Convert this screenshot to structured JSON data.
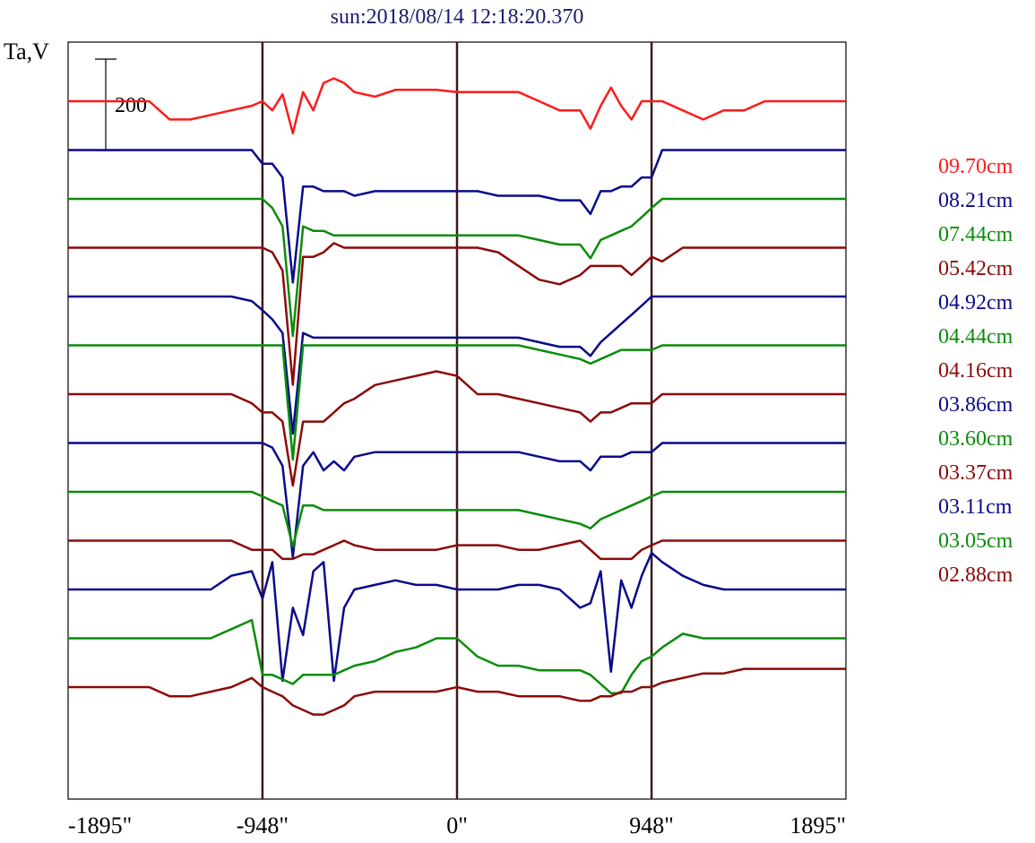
{
  "chart_data": {
    "type": "line",
    "title": "sun:2018/08/14 12:18:20.370",
    "title_color": "#1a1a6e",
    "ylabel": "Ta,V",
    "scale_bar_label": "200",
    "scale_bar_value": 200,
    "xlim": [
      -1895,
      1895
    ],
    "x_ticks": [
      -1895,
      -948,
      0,
      948,
      1895
    ],
    "x_tick_labels": [
      "-1895\"",
      "-948\"",
      "0\"",
      "948\"",
      "1895\""
    ],
    "vertical_lines": [
      -948,
      0,
      948
    ],
    "vertical_line_color": "#3a1a1a",
    "grid": false,
    "legend_placement": "right",
    "x": [
      -1895,
      -1800,
      -1700,
      -1600,
      -1500,
      -1400,
      -1300,
      -1200,
      -1100,
      -1000,
      -948,
      -900,
      -850,
      -800,
      -750,
      -700,
      -650,
      -600,
      -550,
      -500,
      -400,
      -300,
      -200,
      -100,
      0,
      100,
      200,
      300,
      400,
      500,
      600,
      650,
      700,
      750,
      800,
      850,
      900,
      948,
      1000,
      1100,
      1200,
      1300,
      1400,
      1500,
      1600,
      1700,
      1800,
      1895
    ],
    "series": [
      {
        "name": "09.70cm",
        "color": "#ff1a1a",
        "values": [
          0,
          0,
          0,
          0,
          0,
          -40,
          -40,
          -30,
          -20,
          -10,
          0,
          -20,
          15,
          -70,
          20,
          -20,
          40,
          50,
          40,
          20,
          10,
          25,
          25,
          25,
          20,
          20,
          20,
          20,
          0,
          -20,
          -20,
          -60,
          -10,
          30,
          -10,
          -40,
          0,
          0,
          0,
          -20,
          -40,
          -20,
          -20,
          0,
          0,
          0,
          0,
          0
        ]
      },
      {
        "name": "08.21cm",
        "color": "#0a0a8c",
        "values": [
          0,
          0,
          0,
          0,
          0,
          0,
          0,
          0,
          0,
          0,
          -30,
          -30,
          -60,
          -290,
          -80,
          -80,
          -90,
          -90,
          -90,
          -100,
          -90,
          -90,
          -90,
          -90,
          -90,
          -90,
          -100,
          -100,
          -100,
          -110,
          -110,
          -140,
          -90,
          -90,
          -80,
          -80,
          -60,
          -60,
          0,
          0,
          0,
          0,
          0,
          0,
          0,
          0,
          0,
          0
        ]
      },
      {
        "name": "07.44cm",
        "color": "#0a8c0a",
        "values": [
          0,
          0,
          0,
          0,
          0,
          0,
          0,
          0,
          0,
          0,
          0,
          -20,
          -60,
          -300,
          -60,
          -70,
          -70,
          -80,
          -80,
          -80,
          -80,
          -80,
          -80,
          -80,
          -80,
          -80,
          -80,
          -80,
          -90,
          -100,
          -100,
          -130,
          -90,
          -80,
          -70,
          -60,
          -40,
          -20,
          0,
          0,
          0,
          0,
          0,
          0,
          0,
          0,
          0,
          0
        ]
      },
      {
        "name": "05.42cm",
        "color": "#8c0a0a",
        "values": [
          0,
          0,
          0,
          0,
          0,
          0,
          0,
          0,
          0,
          0,
          0,
          -10,
          -50,
          -300,
          -20,
          -20,
          -10,
          10,
          0,
          0,
          0,
          0,
          0,
          0,
          0,
          0,
          -10,
          -40,
          -70,
          -80,
          -60,
          -40,
          -40,
          -40,
          -40,
          -60,
          -40,
          -20,
          -30,
          0,
          0,
          0,
          0,
          0,
          0,
          0,
          0,
          0
        ]
      },
      {
        "name": "04.92cm",
        "color": "#0a0a8c",
        "values": [
          0,
          0,
          0,
          0,
          0,
          0,
          0,
          0,
          0,
          -10,
          -30,
          -50,
          -80,
          -300,
          -80,
          -90,
          -90,
          -90,
          -90,
          -90,
          -90,
          -90,
          -90,
          -90,
          -90,
          -90,
          -90,
          -90,
          -100,
          -110,
          -110,
          -130,
          -100,
          -80,
          -60,
          -40,
          -20,
          0,
          0,
          0,
          0,
          0,
          0,
          0,
          0,
          0,
          0,
          0
        ]
      },
      {
        "name": "04.44cm",
        "color": "#0a8c0a",
        "values": [
          0,
          0,
          0,
          0,
          0,
          0,
          0,
          0,
          0,
          0,
          0,
          0,
          0,
          -250,
          0,
          0,
          0,
          0,
          0,
          0,
          0,
          0,
          0,
          0,
          0,
          0,
          0,
          0,
          -10,
          -20,
          -30,
          -40,
          -30,
          -20,
          -10,
          -10,
          -10,
          -10,
          0,
          0,
          0,
          0,
          0,
          0,
          0,
          0,
          0,
          0
        ]
      },
      {
        "name": "04.16cm",
        "color": "#8c0a0a",
        "values": [
          0,
          0,
          0,
          0,
          0,
          0,
          0,
          0,
          0,
          -20,
          -40,
          -40,
          -60,
          -200,
          -60,
          -60,
          -60,
          -40,
          -20,
          -10,
          20,
          30,
          40,
          50,
          40,
          0,
          0,
          -10,
          -20,
          -30,
          -40,
          -60,
          -40,
          -40,
          -30,
          -20,
          -20,
          -20,
          0,
          0,
          0,
          0,
          0,
          0,
          0,
          0,
          0,
          0
        ]
      },
      {
        "name": "03.86cm",
        "color": "#0a0a8c",
        "values": [
          0,
          0,
          0,
          0,
          0,
          0,
          0,
          0,
          0,
          0,
          0,
          -10,
          -50,
          -250,
          -50,
          -20,
          -60,
          -40,
          -60,
          -30,
          -20,
          -20,
          -20,
          -20,
          -20,
          -20,
          -20,
          -20,
          -30,
          -40,
          -40,
          -60,
          -30,
          -30,
          -30,
          -20,
          -20,
          -20,
          0,
          0,
          0,
          0,
          0,
          0,
          0,
          0,
          0,
          0
        ]
      },
      {
        "name": "03.60cm",
        "color": "#0a8c0a",
        "values": [
          0,
          0,
          0,
          0,
          0,
          0,
          0,
          0,
          0,
          0,
          -10,
          -20,
          -30,
          -120,
          -30,
          -30,
          -40,
          -40,
          -40,
          -40,
          -40,
          -40,
          -40,
          -40,
          -40,
          -40,
          -40,
          -40,
          -50,
          -60,
          -70,
          -80,
          -60,
          -50,
          -40,
          -30,
          -20,
          -10,
          0,
          0,
          0,
          0,
          0,
          0,
          0,
          0,
          0,
          0
        ]
      },
      {
        "name": "03.37cm",
        "color": "#8c0a0a",
        "values": [
          0,
          0,
          0,
          0,
          0,
          0,
          0,
          0,
          0,
          -20,
          -20,
          -20,
          -40,
          -40,
          -30,
          -30,
          -20,
          -10,
          0,
          -10,
          -20,
          -20,
          -20,
          -20,
          -10,
          -10,
          -10,
          -20,
          -20,
          -10,
          0,
          -20,
          -40,
          -40,
          -40,
          -40,
          -20,
          -10,
          0,
          0,
          0,
          0,
          0,
          0,
          0,
          0,
          0,
          0
        ]
      },
      {
        "name": "03.11cm",
        "color": "#0a0a8c",
        "values": [
          0,
          0,
          0,
          0,
          0,
          0,
          0,
          0,
          30,
          40,
          -20,
          60,
          -200,
          -40,
          -100,
          40,
          60,
          -200,
          -40,
          0,
          10,
          20,
          10,
          10,
          0,
          0,
          0,
          10,
          10,
          0,
          -40,
          -30,
          40,
          -180,
          20,
          -40,
          30,
          80,
          60,
          30,
          10,
          0,
          0,
          0,
          0,
          0,
          0,
          0
        ]
      },
      {
        "name": "03.05cm",
        "color": "#0a8c0a",
        "values": [
          0,
          0,
          0,
          0,
          0,
          0,
          0,
          0,
          20,
          40,
          -80,
          -80,
          -90,
          -100,
          -80,
          -80,
          -80,
          -80,
          -70,
          -60,
          -50,
          -30,
          -20,
          0,
          0,
          -40,
          -60,
          -60,
          -70,
          -70,
          -70,
          -80,
          -100,
          -120,
          -120,
          -80,
          -50,
          -40,
          -20,
          10,
          0,
          0,
          0,
          0,
          0,
          0,
          0,
          0
        ]
      },
      {
        "name": "02.88cm",
        "color": "#8c0a0a",
        "values": [
          0,
          0,
          0,
          0,
          0,
          -20,
          -20,
          -10,
          0,
          20,
          0,
          -10,
          -20,
          -40,
          -50,
          -60,
          -60,
          -50,
          -40,
          -20,
          -10,
          -10,
          -10,
          -10,
          0,
          -10,
          -10,
          -20,
          -20,
          -20,
          -30,
          -30,
          -20,
          -20,
          -10,
          -10,
          0,
          0,
          10,
          20,
          30,
          30,
          40,
          40,
          40,
          40,
          40,
          40
        ]
      }
    ]
  }
}
